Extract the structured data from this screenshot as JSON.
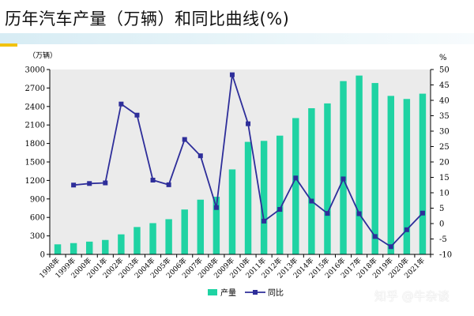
{
  "page": {
    "title": "历年汽车产量（万辆）和同比曲线(%)",
    "watermark": "知乎 @牛杂谈"
  },
  "chart_data": {
    "type": "bar+line",
    "categories": [
      "1998年",
      "1999年",
      "2000年",
      "2001年",
      "2002年",
      "2003年",
      "2004年",
      "2005年",
      "2006年",
      "2007年",
      "2008年",
      "2009年",
      "2010年",
      "2011年",
      "2012年",
      "2013年",
      "2014年",
      "2015年",
      "2016年",
      "2017年",
      "2018年",
      "2019年",
      "2020年",
      "2021年"
    ],
    "series": [
      {
        "name": "产量",
        "type": "bar",
        "axis": "left",
        "color": "#1fd3a3",
        "values": [
          163,
          183,
          207,
          234,
          325,
          444,
          507,
          571,
          728,
          888,
          935,
          1379,
          1826,
          1842,
          1927,
          2212,
          2372,
          2450,
          2812,
          2902,
          2781,
          2572,
          2522,
          2608
        ]
      },
      {
        "name": "同比",
        "type": "line",
        "axis": "right",
        "color": "#2e2e9a",
        "values": [
          null,
          12.5,
          13.0,
          13.2,
          38.8,
          35.2,
          14.1,
          12.6,
          27.3,
          22.0,
          5.2,
          48.3,
          32.4,
          0.8,
          4.6,
          14.8,
          7.3,
          3.3,
          14.5,
          3.2,
          -4.2,
          -7.5,
          -2.0,
          3.4
        ]
      }
    ],
    "y_left": {
      "unit_label": "（万辆）",
      "min": 0,
      "max": 3000,
      "ticks": [
        0,
        300,
        600,
        900,
        1200,
        1500,
        1800,
        2100,
        2400,
        2700,
        3000
      ]
    },
    "y_right": {
      "unit_label": "%",
      "min": -10,
      "max": 50,
      "ticks": [
        -10,
        -5,
        0,
        5,
        10,
        15,
        20,
        25,
        30,
        35,
        40,
        45,
        50
      ]
    },
    "grid": false,
    "legend": {
      "position": "bottom-center",
      "items": [
        "产量",
        "同比"
      ]
    },
    "background": "#ebebeb"
  }
}
